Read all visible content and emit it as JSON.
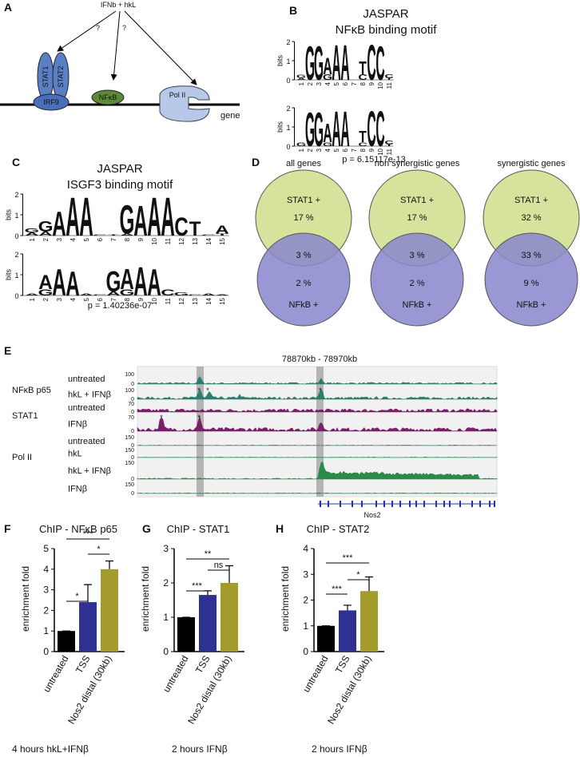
{
  "panel_labels": [
    "A",
    "B",
    "C",
    "D",
    "E",
    "F",
    "G",
    "H"
  ],
  "letter_colors": {
    "A": "#c8102e",
    "C": "#1f2f8f",
    "G": "#e8a317",
    "T": "#2e8b3a"
  },
  "a": {
    "stimulus": "IFNb + hkL",
    "questions": [
      "?",
      "?"
    ],
    "stat1": "STAT1",
    "stat2": "STAT2",
    "irf9": "IRF9",
    "nfkb": "NFκB",
    "pol2": "Pol II",
    "gene": "gene"
  },
  "b": {
    "source": "JASPAR",
    "title": "NFκB binding motif",
    "axis_label": "bits",
    "yticks": [
      0,
      1,
      2
    ],
    "positions": [
      1,
      2,
      3,
      4,
      5,
      6,
      7,
      8,
      9,
      10,
      11
    ],
    "logos": [
      [
        [
          {
            "letter": "A",
            "bits": 0.1
          },
          {
            "letter": "G",
            "bits": 0.15
          }
        ],
        [
          {
            "letter": "G",
            "bits": 1.8
          }
        ],
        [
          {
            "letter": "G",
            "bits": 1.8
          }
        ],
        [
          {
            "letter": "G",
            "bits": 0.3
          },
          {
            "letter": "A",
            "bits": 0.9
          }
        ],
        [
          {
            "letter": "A",
            "bits": 1.9
          }
        ],
        [
          {
            "letter": "A",
            "bits": 1.9
          }
        ],
        [],
        [
          {
            "letter": "C",
            "bits": 0.3
          },
          {
            "letter": "T",
            "bits": 0.7
          }
        ],
        [
          {
            "letter": "C",
            "bits": 1.9
          }
        ],
        [
          {
            "letter": "C",
            "bits": 1.8
          }
        ],
        [
          {
            "letter": "T",
            "bits": 0.1
          },
          {
            "letter": "C",
            "bits": 0.2
          }
        ]
      ],
      [
        [
          {
            "letter": "G",
            "bits": 0.2
          }
        ],
        [
          {
            "letter": "G",
            "bits": 1.8
          }
        ],
        [
          {
            "letter": "G",
            "bits": 1.8
          }
        ],
        [
          {
            "letter": "G",
            "bits": 0.2
          },
          {
            "letter": "A",
            "bits": 1.0
          }
        ],
        [
          {
            "letter": "A",
            "bits": 1.9
          }
        ],
        [
          {
            "letter": "A",
            "bits": 1.9
          }
        ],
        [],
        [
          {
            "letter": "C",
            "bits": 0.2
          },
          {
            "letter": "T",
            "bits": 0.6
          }
        ],
        [
          {
            "letter": "C",
            "bits": 1.9
          }
        ],
        [
          {
            "letter": "C",
            "bits": 1.9
          }
        ],
        [
          {
            "letter": "T",
            "bits": 0.1
          },
          {
            "letter": "C",
            "bits": 0.2
          }
        ]
      ]
    ],
    "p_value": "p = 6.15117e-13"
  },
  "c": {
    "source": "JASPAR",
    "title": "ISGF3 binding motif",
    "axis_label": "bits",
    "yticks": [
      0,
      1,
      2
    ],
    "positions": [
      1,
      2,
      3,
      4,
      5,
      6,
      7,
      8,
      9,
      10,
      11,
      12,
      13,
      14,
      15
    ],
    "logos": [
      [
        [
          {
            "letter": "A",
            "bits": 0.15
          },
          {
            "letter": "G",
            "bits": 0.2
          }
        ],
        [
          {
            "letter": "A",
            "bits": 0.2
          },
          {
            "letter": "G",
            "bits": 0.5
          }
        ],
        [
          {
            "letter": "A",
            "bits": 1.2
          }
        ],
        [
          {
            "letter": "A",
            "bits": 1.9
          }
        ],
        [
          {
            "letter": "A",
            "bits": 1.9
          }
        ],
        [
          {
            "letter": "C",
            "bits": 0.05
          }
        ],
        [
          {
            "letter": "T",
            "bits": 0.05
          }
        ],
        [
          {
            "letter": "A",
            "bits": 0.1
          },
          {
            "letter": "G",
            "bits": 1.4
          }
        ],
        [
          {
            "letter": "A",
            "bits": 1.5
          }
        ],
        [
          {
            "letter": "A",
            "bits": 1.9
          }
        ],
        [
          {
            "letter": "A",
            "bits": 1.9
          }
        ],
        [
          {
            "letter": "C",
            "bits": 0.9
          }
        ],
        [
          {
            "letter": "T",
            "bits": 0.7
          }
        ],
        [
          {
            "letter": "C",
            "bits": 0.05
          }
        ],
        [
          {
            "letter": "T",
            "bits": 0.1
          },
          {
            "letter": "A",
            "bits": 0.4
          }
        ]
      ],
      [
        [
          {
            "letter": "A",
            "bits": 0.1
          }
        ],
        [
          {
            "letter": "G",
            "bits": 0.3
          },
          {
            "letter": "A",
            "bits": 0.7
          }
        ],
        [
          {
            "letter": "A",
            "bits": 1.3
          }
        ],
        [
          {
            "letter": "A",
            "bits": 1.2
          }
        ],
        [
          {
            "letter": "A",
            "bits": 0.1
          }
        ],
        [
          {
            "letter": "C",
            "bits": 0.05
          }
        ],
        [
          {
            "letter": "A",
            "bits": 0.2
          },
          {
            "letter": "G",
            "bits": 1.0
          }
        ],
        [
          {
            "letter": "G",
            "bits": 0.3
          },
          {
            "letter": "A",
            "bits": 1.0
          }
        ],
        [
          {
            "letter": "A",
            "bits": 1.4
          }
        ],
        [
          {
            "letter": "A",
            "bits": 1.3
          }
        ],
        [
          {
            "letter": "C",
            "bits": 0.3
          }
        ],
        [
          {
            "letter": "G",
            "bits": 0.15
          }
        ],
        [
          {
            "letter": "C",
            "bits": 0.05
          }
        ],
        [
          {
            "letter": "A",
            "bits": 0.1
          }
        ],
        [
          {
            "letter": "A",
            "bits": 0.05
          }
        ]
      ]
    ],
    "p_value": "p = 1.40236e-07"
  },
  "d": {
    "venns": [
      {
        "title": "all genes",
        "top_label": "STAT1 +",
        "top_only": "17 %",
        "overlap": "3 %",
        "bottom_only": "2 %",
        "bottom_label": "NFkB +"
      },
      {
        "title": "non synergistic genes",
        "top_label": "STAT1 +",
        "top_only": "17 %",
        "overlap": "3 %",
        "bottom_only": "2 %",
        "bottom_label": "NFkB +"
      },
      {
        "title": "synergistic genes",
        "top_label": "STAT1 +",
        "top_only": "32 %",
        "overlap": "33 %",
        "bottom_only": "9 %",
        "bottom_label": "NFkB +"
      }
    ]
  },
  "e": {
    "region": "78870kb - 78970kb",
    "gene": "Nos2",
    "groups": [
      {
        "name": "NFκB p65",
        "tracks": [
          {
            "label": "untreated",
            "scale": [
              100,
              0
            ]
          },
          {
            "label": "hkL + IFNβ",
            "scale": [
              100,
              0
            ],
            "stars": [
              "*",
              "*",
              "*"
            ]
          }
        ]
      },
      {
        "name": "STAT1",
        "tracks": [
          {
            "label": "untreated",
            "scale": [
              70,
              0
            ]
          },
          {
            "label": "IFNβ",
            "scale": [
              70,
              0
            ],
            "stars": [
              "*",
              "*"
            ]
          }
        ]
      },
      {
        "name": "Pol II",
        "tracks": [
          {
            "label": "untreated",
            "scale": [
              150,
              0
            ]
          },
          {
            "label": "hkL",
            "scale": [
              150,
              0
            ]
          },
          {
            "label": "hkL + IFNβ",
            "scale": [
              150,
              0
            ]
          },
          {
            "label": "IFNβ",
            "scale": [
              150,
              0
            ]
          }
        ]
      }
    ]
  },
  "chart_data": [
    {
      "type": "bar",
      "title": "ChIP - NFκB p65",
      "y_label": "enrichment fold",
      "categories": [
        "untreated",
        "TSS",
        "Nos2 distal (30kb)"
      ],
      "values": [
        1,
        2.4,
        4.0
      ],
      "errors": [
        0,
        0.85,
        0.4
      ],
      "colors": [
        "#000000",
        "#2e3192",
        "#a39b2b"
      ],
      "ylim": [
        0,
        5
      ],
      "yticks": [
        0,
        1,
        2,
        3,
        4,
        5
      ],
      "significance": [
        "*",
        "*",
        "***"
      ],
      "footnote": "4 hours hkL+IFNβ"
    },
    {
      "type": "bar",
      "title": "ChIP - STAT1",
      "y_label": "enrichment fold",
      "categories": [
        "untreated",
        "TSS",
        "Nos2 distal (30kb)"
      ],
      "values": [
        1,
        1.65,
        2.0
      ],
      "errors": [
        0,
        0.12,
        0.5
      ],
      "colors": [
        "#000000",
        "#2e3192",
        "#a39b2b"
      ],
      "ylim": [
        0,
        3
      ],
      "yticks": [
        0,
        1,
        2,
        3
      ],
      "significance": [
        "***",
        "ns",
        "**"
      ],
      "footnote": "2 hours IFNβ"
    },
    {
      "type": "bar",
      "title": "ChIP - STAT2",
      "y_label": "enrichment fold",
      "categories": [
        "untreated",
        "TSS",
        "Nos2 distal (30kb)"
      ],
      "values": [
        1,
        1.6,
        2.35
      ],
      "errors": [
        0,
        0.2,
        0.55
      ],
      "colors": [
        "#000000",
        "#2e3192",
        "#a39b2b"
      ],
      "ylim": [
        0,
        4
      ],
      "yticks": [
        0,
        1,
        2,
        3,
        4
      ],
      "significance": [
        "***",
        "*",
        "***"
      ],
      "footnote": "2 hours IFNβ"
    }
  ]
}
